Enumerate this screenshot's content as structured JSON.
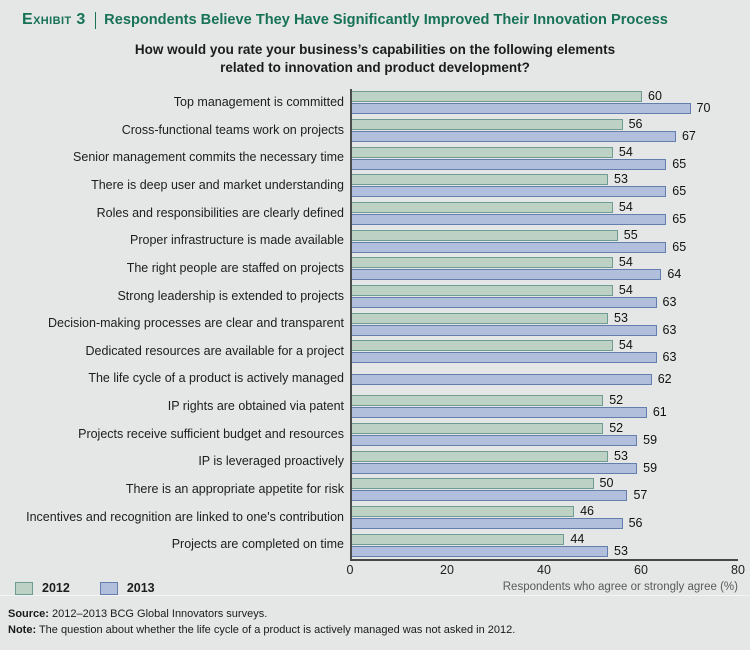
{
  "header": {
    "exhibit_label": "Exhibit 3",
    "title": "Respondents Believe They Have Significantly Improved Their Innovation Process"
  },
  "subtitle": {
    "line1": "How would you rate your business’s capabilities on the following elements",
    "line2": "related to innovation and product development?"
  },
  "chart_data": {
    "type": "bar",
    "orientation": "horizontal",
    "title": "How would you rate your business’s capabilities on the following elements related to innovation and product development?",
    "categories": [
      "Top management is committed",
      "Cross-functional teams work on projects",
      "Senior management commits the necessary time",
      "There is deep user and market understanding",
      "Roles and responsibilities are clearly defined",
      "Proper infrastructure is made available",
      "The right people are staffed on projects",
      "Strong leadership is extended to projects",
      "Decision-making processes are clear and transparent",
      "Dedicated resources are available for a project",
      "The life cycle of a product is actively managed",
      "IP rights are obtained via patent",
      "Projects receive sufficient budget and resources",
      "IP is leveraged proactively",
      "There is an appropriate appetite for risk",
      "Incentives and recognition are linked to one's contribution",
      "Projects are completed on time"
    ],
    "series": [
      {
        "name": "2012",
        "fill": "#bdd2c5",
        "border": "#6f9c92",
        "values": [
          60,
          56,
          54,
          53,
          54,
          55,
          54,
          54,
          53,
          54,
          null,
          52,
          52,
          53,
          50,
          46,
          44
        ]
      },
      {
        "name": "2013",
        "fill": "#b2bfdc",
        "border": "#647fae",
        "values": [
          70,
          67,
          65,
          65,
          65,
          65,
          64,
          63,
          63,
          63,
          62,
          61,
          59,
          59,
          57,
          56,
          53
        ]
      }
    ],
    "xlim": [
      0,
      80
    ],
    "xticks": [
      0,
      20,
      40,
      60,
      80
    ],
    "xlabel": "Respondents who agree or strongly agree (%)",
    "grid": false,
    "value_labels": true,
    "legend_position": "bottom-left"
  },
  "footer": {
    "source_label": "Source:",
    "source_text": " 2012–2013 BCG Global Innovators surveys.",
    "note_label": "Note:",
    "note_text": " The question about whether the life cycle of a product is actively managed was not asked in 2012."
  },
  "colors": {
    "background": "#e4e7e5",
    "title_green": "#177257",
    "axis": "#4b4b4b"
  }
}
